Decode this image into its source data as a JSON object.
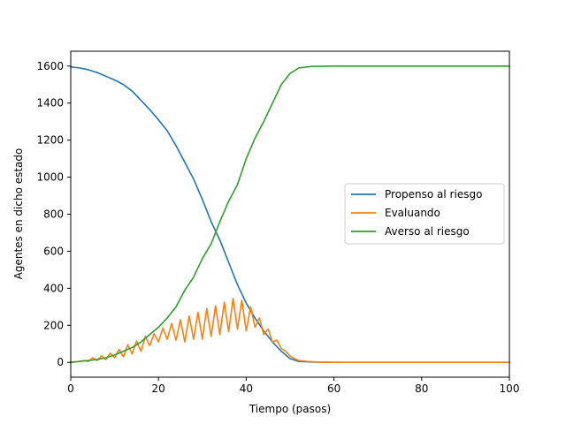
{
  "chart_data": {
    "type": "line",
    "title": "",
    "xlabel": "Tiempo (pasos)",
    "ylabel": "Agentes en dicho estado",
    "xlim": [
      0,
      100
    ],
    "ylim": [
      -80,
      1680
    ],
    "xticks": [
      0,
      20,
      40,
      60,
      80,
      100
    ],
    "yticks": [
      0,
      200,
      400,
      600,
      800,
      1000,
      1200,
      1400,
      1600
    ],
    "grid": false,
    "legend_position": "center-right",
    "series": [
      {
        "name": "Propenso al riesgo",
        "color": "#1f77b4",
        "x": [
          0,
          2,
          4,
          6,
          8,
          10,
          12,
          14,
          16,
          18,
          20,
          22,
          24,
          26,
          28,
          30,
          32,
          34,
          36,
          38,
          40,
          42,
          44,
          46,
          48,
          50,
          52,
          55,
          60,
          100
        ],
        "y": [
          1595,
          1590,
          1580,
          1565,
          1545,
          1525,
          1500,
          1465,
          1415,
          1365,
          1310,
          1250,
          1170,
          1080,
          990,
          880,
          760,
          660,
          540,
          420,
          320,
          240,
          170,
          110,
          60,
          20,
          5,
          2,
          0,
          0
        ]
      },
      {
        "name": "Evaluando",
        "color": "#ff7f0e",
        "x": [
          0,
          2,
          3,
          4,
          5,
          6,
          7,
          8,
          9,
          10,
          11,
          12,
          13,
          14,
          15,
          16,
          17,
          18,
          19,
          20,
          21,
          22,
          23,
          24,
          25,
          26,
          27,
          28,
          29,
          30,
          31,
          32,
          33,
          34,
          35,
          36,
          37,
          38,
          39,
          40,
          41,
          42,
          43,
          44,
          45,
          46,
          47,
          48,
          49,
          50,
          51,
          52,
          54,
          56,
          60,
          100
        ],
        "y": [
          0,
          5,
          10,
          5,
          25,
          10,
          35,
          15,
          50,
          25,
          70,
          30,
          95,
          45,
          115,
          60,
          140,
          90,
          155,
          110,
          185,
          125,
          210,
          120,
          230,
          110,
          250,
          125,
          270,
          125,
          290,
          140,
          305,
          150,
          325,
          165,
          345,
          180,
          335,
          170,
          300,
          190,
          240,
          150,
          180,
          110,
          120,
          75,
          60,
          35,
          20,
          10,
          5,
          2,
          0,
          0
        ]
      },
      {
        "name": "Averso al riesgo",
        "color": "#2ca02c",
        "x": [
          0,
          2,
          4,
          6,
          8,
          10,
          12,
          14,
          16,
          18,
          20,
          22,
          24,
          26,
          28,
          30,
          32,
          34,
          36,
          38,
          40,
          42,
          44,
          46,
          48,
          50,
          52,
          55,
          60,
          100
        ],
        "y": [
          0,
          5,
          10,
          15,
          25,
          40,
          60,
          80,
          110,
          150,
          190,
          240,
          300,
          390,
          460,
          560,
          640,
          760,
          870,
          960,
          1100,
          1210,
          1300,
          1400,
          1500,
          1560,
          1590,
          1598,
          1600,
          1600
        ]
      }
    ]
  }
}
